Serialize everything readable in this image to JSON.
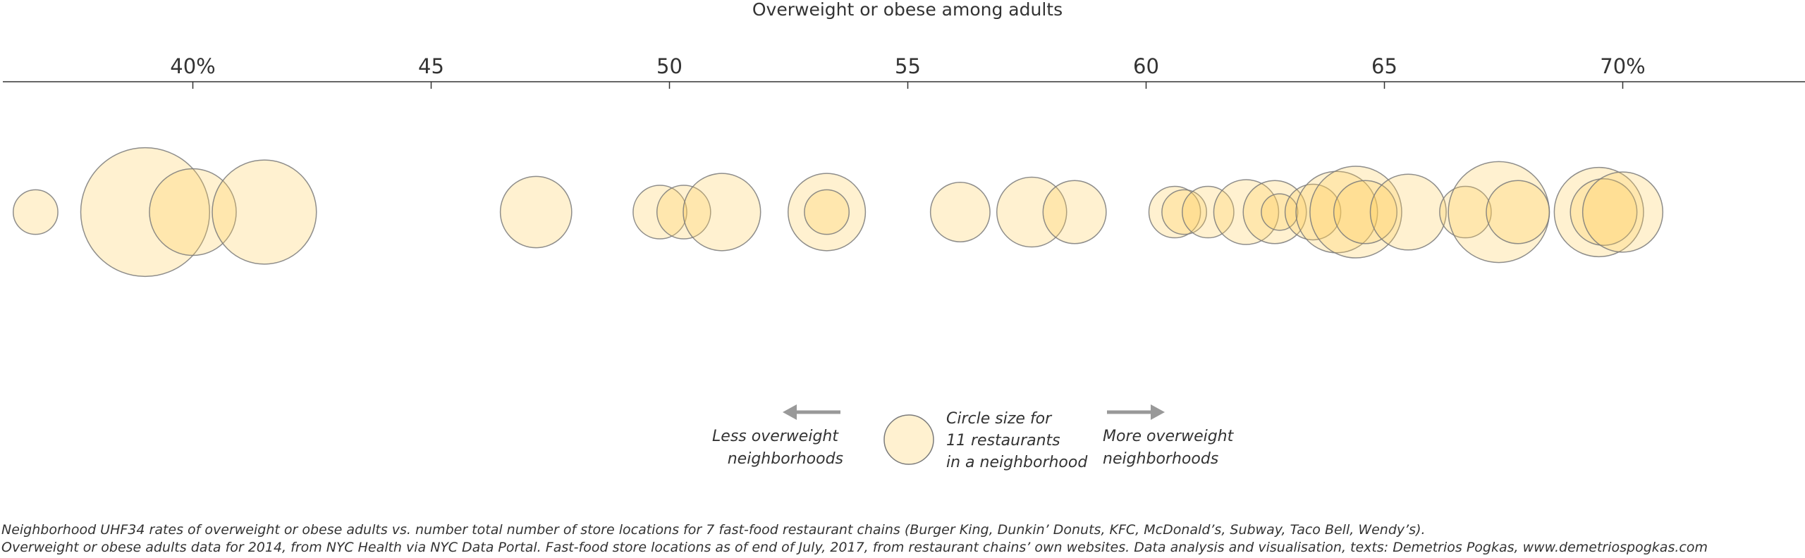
{
  "chart_data": {
    "type": "scatter",
    "title": "Overweight or obese among adults",
    "xlim": [
      36,
      74
    ],
    "ticks": [
      {
        "value": 40,
        "label": "40%"
      },
      {
        "value": 45,
        "label": "45"
      },
      {
        "value": 50,
        "label": "50"
      },
      {
        "value": 55,
        "label": "55"
      },
      {
        "value": 60,
        "label": "60"
      },
      {
        "value": 65,
        "label": "65"
      },
      {
        "value": 70,
        "label": "70%"
      }
    ],
    "size_variable": "number of fast-food store locations",
    "points": [
      {
        "x": 36.7,
        "size": 9
      },
      {
        "x": 39.0,
        "size": 75
      },
      {
        "x": 40.0,
        "size": 34
      },
      {
        "x": 41.5,
        "size": 49
      },
      {
        "x": 47.2,
        "size": 23
      },
      {
        "x": 49.8,
        "size": 13
      },
      {
        "x": 50.3,
        "size": 13
      },
      {
        "x": 51.1,
        "size": 27
      },
      {
        "x": 53.3,
        "size": 27
      },
      {
        "x": 53.3,
        "size": 9
      },
      {
        "x": 56.1,
        "size": 16
      },
      {
        "x": 57.6,
        "size": 22
      },
      {
        "x": 58.5,
        "size": 18
      },
      {
        "x": 60.6,
        "size": 12
      },
      {
        "x": 60.8,
        "size": 9
      },
      {
        "x": 61.3,
        "size": 12
      },
      {
        "x": 62.1,
        "size": 19
      },
      {
        "x": 62.7,
        "size": 18
      },
      {
        "x": 62.8,
        "size": 6
      },
      {
        "x": 63.5,
        "size": 14
      },
      {
        "x": 64.0,
        "size": 30
      },
      {
        "x": 64.4,
        "size": 38
      },
      {
        "x": 64.6,
        "size": 18
      },
      {
        "x": 65.5,
        "size": 26
      },
      {
        "x": 66.7,
        "size": 12
      },
      {
        "x": 67.4,
        "size": 46
      },
      {
        "x": 67.8,
        "size": 18
      },
      {
        "x": 69.5,
        "size": 36
      },
      {
        "x": 69.6,
        "size": 20
      },
      {
        "x": 70.0,
        "size": 29
      }
    ]
  },
  "legend": {
    "left_text": [
      "Less overweight",
      "neighborhoods"
    ],
    "size_text": [
      "Circle size for",
      "11 restaurants",
      "in a neighborhood"
    ],
    "size_value": 11,
    "right_text": [
      "More overweight",
      "neighborhoods"
    ]
  },
  "footnote": {
    "line1": "Neighborhood UHF34 rates of overweight or obese adults vs. number total number of store locations for 7 fast-food restaurant chains (Burger King, Dunkin’ Donuts, KFC, McDonald’s, Subway, Taco Bell, Wendy’s).",
    "line2": "Overweight or obese adults data for 2014, from NYC Health via NYC Data Portal. Fast-food store locations as of end of July, 2017, from restaurant chains’ own websites. Data analysis and visualisation, texts: Demetrios Pogkas, www.demetriospogkas.com"
  },
  "colors": {
    "bubble_fill": "#ffcc55",
    "bubble_stroke": "#7a7a7a",
    "arrow": "#999999",
    "axis": "#333333"
  }
}
